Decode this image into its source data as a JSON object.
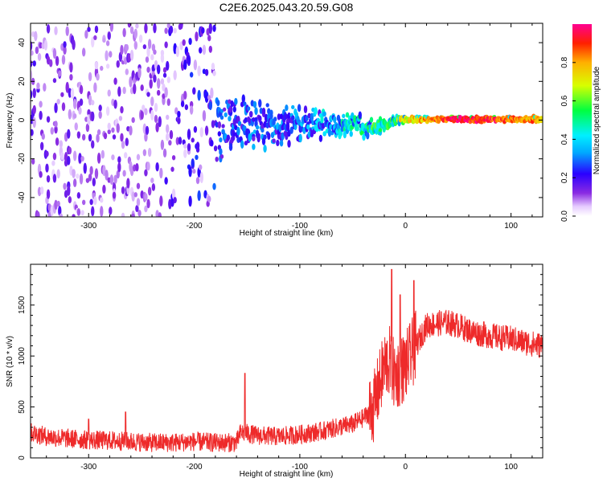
{
  "figure": {
    "title": "C2E6.2025.043.20.59.G08"
  },
  "chart_data": [
    {
      "type": "heatmap",
      "xlabel": "Height of straight line (km)",
      "ylabel": "Frequency (Hz)",
      "xlim": [
        -355,
        130
      ],
      "ylim": [
        -50,
        50
      ],
      "xticks": [
        -300,
        -200,
        -100,
        0,
        100
      ],
      "yticks": [
        -40,
        -20,
        0,
        20,
        40
      ],
      "tick_labels_x": [
        "-300",
        "-200",
        "-100",
        "0",
        "100"
      ],
      "tick_labels_y": [
        "-40",
        "-20",
        "0",
        "20",
        "40"
      ],
      "colormap": "rainbow (white → purple → blue → cyan → green → yellow → red → magenta)",
      "colorbar": {
        "label": "Normalized spectral amplitude",
        "range": [
          0,
          1
        ],
        "ticks": [
          0.0,
          0.2,
          0.4,
          0.6,
          0.8
        ],
        "tick_labels": [
          "0.0",
          "0.2",
          "0.4",
          "0.6",
          "0.8"
        ]
      },
      "description_points": [
        {
          "x": -350,
          "spread_hz": 50,
          "amplitude": 0.15
        },
        {
          "x": -250,
          "spread_hz": 50,
          "amplitude": 0.12
        },
        {
          "x": -175,
          "spread_hz": 20,
          "amplitude": 0.25
        },
        {
          "x": -100,
          "spread_hz": 10,
          "amplitude": 0.3
        },
        {
          "x": -40,
          "spread_hz": 5,
          "amplitude": 0.45
        },
        {
          "x": 0,
          "spread_hz": 2,
          "amplitude": 0.6
        },
        {
          "x": 50,
          "spread_hz": 1.5,
          "amplitude": 0.85
        },
        {
          "x": 130,
          "spread_hz": 2,
          "amplitude": 0.7
        }
      ]
    },
    {
      "type": "line",
      "xlabel": "Height of straight line (km)",
      "ylabel": "SNR (10 * v/v)",
      "xlim": [
        -355,
        130
      ],
      "ylim": [
        0,
        1900
      ],
      "xticks": [
        -300,
        -200,
        -100,
        0,
        100
      ],
      "yticks": [
        0,
        500,
        1000,
        1500
      ],
      "tick_labels_x": [
        "-300",
        "-200",
        "-100",
        "0",
        "100"
      ],
      "tick_labels_y": [
        "0",
        "500",
        "1000",
        "1500"
      ],
      "line_color": "#ee2a2a",
      "series": [
        {
          "x": [
            -355,
            -340,
            -320,
            -300,
            -280,
            -260,
            -240,
            -220,
            -200,
            -180,
            -160,
            -156,
            -150,
            -140,
            -120,
            -100,
            -80,
            -60,
            -50,
            -40,
            -30,
            -25,
            -20,
            -15,
            -10,
            -5,
            0,
            10,
            20,
            30,
            40,
            50,
            60,
            70,
            80,
            90,
            100,
            110,
            120,
            130
          ],
          "y": [
            250,
            210,
            190,
            175,
            170,
            160,
            150,
            150,
            160,
            150,
            150,
            250,
            240,
            220,
            210,
            230,
            260,
            310,
            330,
            390,
            500,
            700,
            900,
            950,
            800,
            850,
            900,
            1100,
            1300,
            1320,
            1330,
            1300,
            1250,
            1220,
            1200,
            1180,
            1170,
            1140,
            1120,
            1100
          ]
        }
      ],
      "annotations_peaks": [
        {
          "x": -300,
          "y": 380
        },
        {
          "x": -265,
          "y": 450
        },
        {
          "x": -152,
          "y": 830
        },
        {
          "x": -13,
          "y": 1850
        },
        {
          "x": 8,
          "y": 1740
        },
        {
          "x": -5,
          "y": 1600
        }
      ]
    }
  ]
}
